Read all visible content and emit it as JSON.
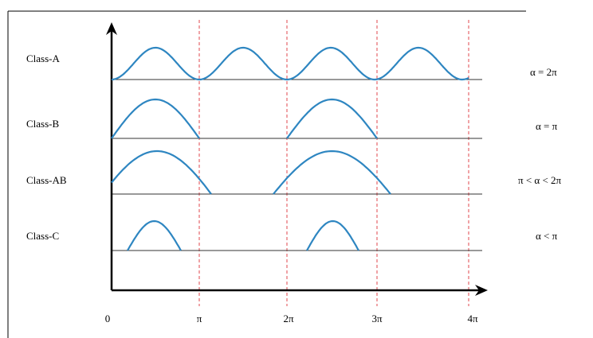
{
  "classes": [
    {
      "label": "Class-A",
      "angle": "α = 2π"
    },
    {
      "label": "Class-B",
      "angle": "α = π"
    },
    {
      "label": "Class-AB",
      "angle": "π < α < 2π"
    },
    {
      "label": "Class-C",
      "angle": "α < π"
    }
  ],
  "axis": {
    "ticks": [
      "0",
      "π",
      "2π",
      "3π",
      "4π"
    ]
  }
}
